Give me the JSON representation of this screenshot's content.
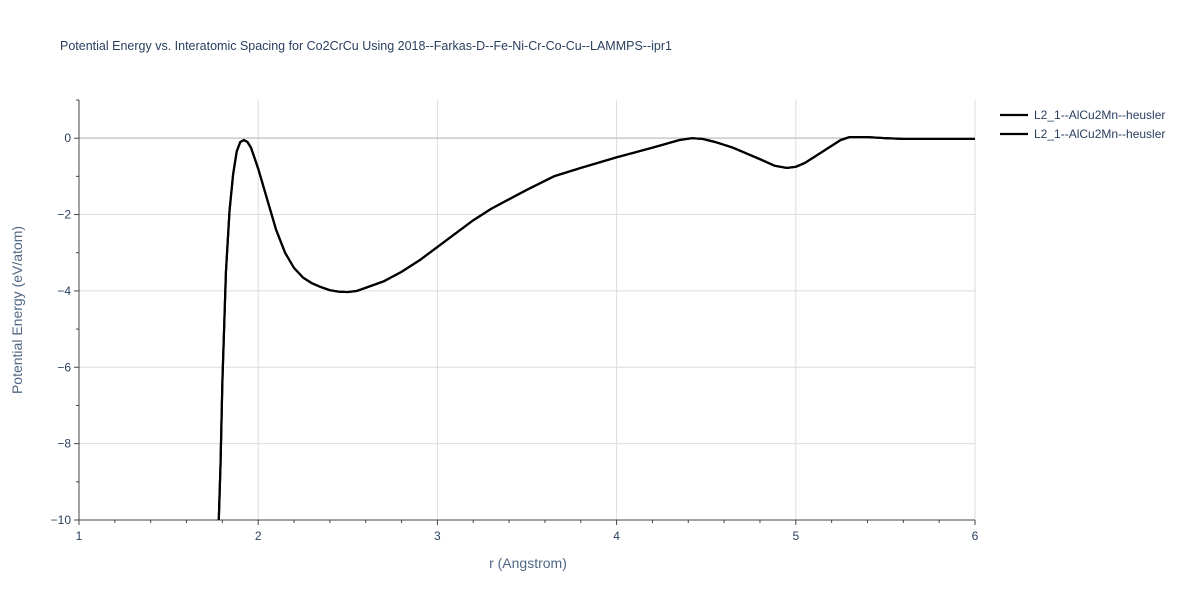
{
  "chart_data": {
    "type": "line",
    "title": "Potential Energy vs. Interatomic Spacing for Co2CrCu Using 2018--Farkas-D--Fe-Ni-Cr-Co-Cu--LAMMPS--ipr1",
    "xlabel": "r (Angstrom)",
    "ylabel": "Potential Energy (eV/atom)",
    "xlim": [
      1,
      6
    ],
    "ylim": [
      -10,
      1
    ],
    "xticks": [
      1,
      2,
      3,
      4,
      5,
      6
    ],
    "xtick_labels": [
      "1",
      "2",
      "3",
      "4",
      "5",
      "6"
    ],
    "yticks": [
      0,
      -2,
      -4,
      -6,
      -8,
      -10
    ],
    "ytick_labels": [
      "0",
      "−2",
      "−4",
      "−6",
      "−8",
      "−10"
    ],
    "grid": true,
    "legend_position": "top-right",
    "series": [
      {
        "name": "L2_1--AlCu2Mn--heusler",
        "color": "#000000",
        "x": [
          1.78,
          1.79,
          1.8,
          1.82,
          1.84,
          1.86,
          1.88,
          1.9,
          1.92,
          1.94,
          1.96,
          2.0,
          2.05,
          2.1,
          2.15,
          2.2,
          2.25,
          2.3,
          2.35,
          2.4,
          2.45,
          2.5,
          2.55,
          2.6,
          2.7,
          2.8,
          2.9,
          3.0,
          3.1,
          3.2,
          3.3,
          3.4,
          3.5,
          3.65,
          3.8,
          4.0,
          4.2,
          4.35,
          4.42,
          4.48,
          4.55,
          4.65,
          4.8,
          4.88,
          4.95,
          5.0,
          5.05,
          5.1,
          5.2,
          5.25,
          5.3,
          5.4,
          5.5,
          5.6,
          5.8,
          6.0
        ],
        "y": [
          -10.0,
          -8.5,
          -6.4,
          -3.5,
          -1.9,
          -0.95,
          -0.35,
          -0.1,
          -0.05,
          -0.1,
          -0.25,
          -0.8,
          -1.6,
          -2.4,
          -3.0,
          -3.4,
          -3.65,
          -3.8,
          -3.9,
          -3.98,
          -4.02,
          -4.03,
          -4.0,
          -3.92,
          -3.75,
          -3.5,
          -3.2,
          -2.85,
          -2.5,
          -2.15,
          -1.85,
          -1.6,
          -1.35,
          -1.0,
          -0.78,
          -0.5,
          -0.25,
          -0.05,
          0.0,
          -0.02,
          -0.1,
          -0.25,
          -0.55,
          -0.72,
          -0.78,
          -0.75,
          -0.65,
          -0.5,
          -0.2,
          -0.05,
          0.03,
          0.03,
          0.0,
          -0.02,
          -0.02,
          -0.02
        ]
      },
      {
        "name": "L2_1--AlCu2Mn--heusler",
        "color": "#000000",
        "x": [
          1.78,
          1.79,
          1.8,
          1.82,
          1.84,
          1.86,
          1.88,
          1.9,
          1.92,
          1.94,
          1.96,
          2.0,
          2.05,
          2.1,
          2.15,
          2.2,
          2.25,
          2.3,
          2.35,
          2.4,
          2.45,
          2.5,
          2.55,
          2.6,
          2.7,
          2.8,
          2.9,
          3.0,
          3.1,
          3.2,
          3.3,
          3.4,
          3.5,
          3.65,
          3.8,
          4.0,
          4.2,
          4.35,
          4.42,
          4.48,
          4.55,
          4.65,
          4.8,
          4.88,
          4.95,
          5.0,
          5.05,
          5.1,
          5.2,
          5.25,
          5.3,
          5.4,
          5.5,
          5.6,
          5.8,
          6.0
        ],
        "y": [
          -10.0,
          -8.5,
          -6.4,
          -3.5,
          -1.9,
          -0.95,
          -0.35,
          -0.1,
          -0.05,
          -0.1,
          -0.25,
          -0.8,
          -1.6,
          -2.4,
          -3.0,
          -3.4,
          -3.65,
          -3.8,
          -3.9,
          -3.98,
          -4.02,
          -4.03,
          -4.0,
          -3.92,
          -3.75,
          -3.5,
          -3.2,
          -2.85,
          -2.5,
          -2.15,
          -1.85,
          -1.6,
          -1.35,
          -1.0,
          -0.78,
          -0.5,
          -0.25,
          -0.05,
          0.0,
          -0.02,
          -0.1,
          -0.25,
          -0.55,
          -0.72,
          -0.78,
          -0.75,
          -0.65,
          -0.5,
          -0.2,
          -0.05,
          0.03,
          0.03,
          0.0,
          -0.02,
          -0.02,
          -0.02
        ]
      }
    ]
  }
}
